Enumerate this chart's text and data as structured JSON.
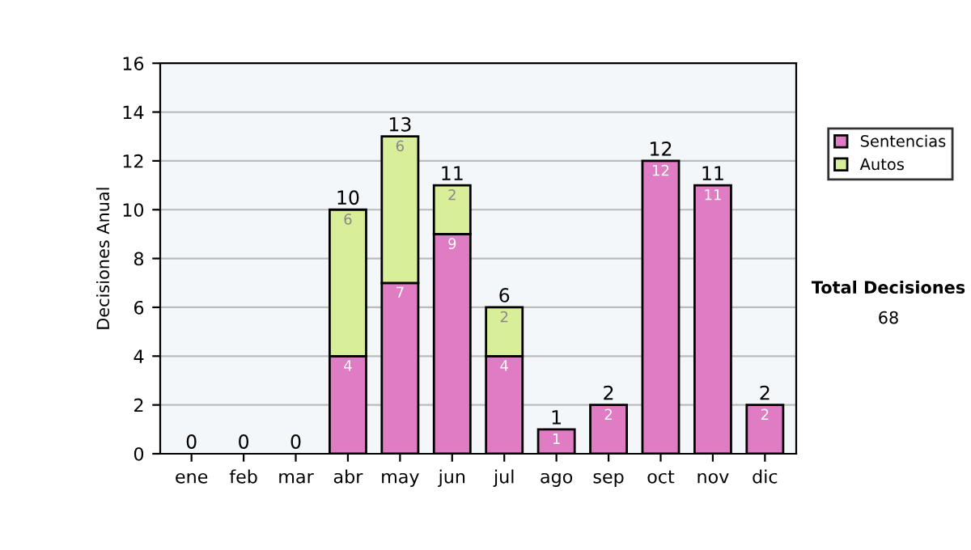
{
  "chart_data": {
    "type": "bar",
    "stacked": true,
    "ylabel": "Decisiones Anual",
    "categories": [
      "ene",
      "feb",
      "mar",
      "abr",
      "may",
      "jun",
      "jul",
      "ago",
      "sep",
      "oct",
      "nov",
      "dic"
    ],
    "series": [
      {
        "name": "Sentencias",
        "color": "#e07cc4",
        "values": [
          0,
          0,
          0,
          4,
          7,
          9,
          4,
          1,
          2,
          12,
          11,
          2
        ],
        "value_labels": [
          null,
          null,
          null,
          "4",
          "7",
          "9",
          "4",
          "1",
          "2",
          "12",
          "11",
          "2"
        ]
      },
      {
        "name": "Autos",
        "color": "#d8ee99",
        "values": [
          0,
          0,
          0,
          6,
          6,
          2,
          2,
          0,
          0,
          0,
          0,
          0
        ],
        "value_labels": [
          null,
          null,
          null,
          "6",
          "6",
          "2",
          "2",
          null,
          null,
          null,
          null,
          null
        ]
      }
    ],
    "totals": [
      "0",
      "0",
      "0",
      "10",
      "13",
      "11",
      "6",
      "1",
      "2",
      "12",
      "11",
      "2"
    ],
    "ylim": [
      0,
      16
    ],
    "yticks": [
      0,
      2,
      4,
      6,
      8,
      10,
      12,
      14,
      16
    ],
    "grid": "y",
    "legend": "right",
    "annotations": [
      "Total Decisiones",
      "68"
    ]
  }
}
